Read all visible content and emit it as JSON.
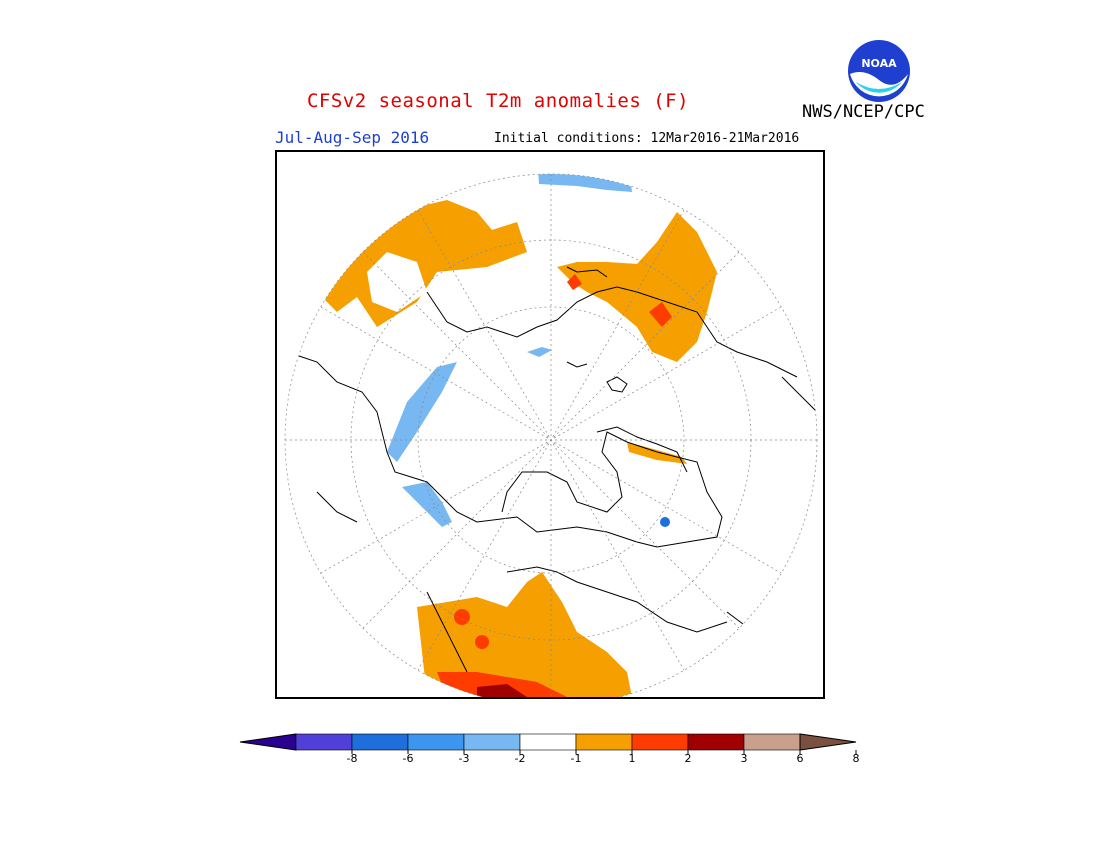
{
  "header": {
    "title": "CFSv2 seasonal T2m anomalies (F)",
    "agency": "NWS/NCEP/CPC",
    "logo_text": "NOAA",
    "season": "Jul-Aug-Sep 2016",
    "initial_conditions": "Initial conditions: 12Mar2016-21Mar2016"
  },
  "map": {
    "projection": "north-polar-stereographic",
    "variable": "T2m anomaly",
    "units": "F",
    "regions": [
      {
        "name": "central-eurasia",
        "anomaly_class": "1 to 2",
        "color": "#f5a000"
      },
      {
        "name": "eastern-siberia",
        "anomaly_class": "1 to 2",
        "color": "#f5a000"
      },
      {
        "name": "eastern-siberia-spots",
        "anomaly_class": "2 to 3",
        "color": "#ff3c00"
      },
      {
        "name": "western-us",
        "anomaly_class": "1 to 2",
        "color": "#f5a000"
      },
      {
        "name": "southwest-us",
        "anomaly_class": "2 to 3",
        "color": "#ff3c00"
      },
      {
        "name": "southwest-us-core",
        "anomaly_class": "3 to 6",
        "color": "#a00000"
      },
      {
        "name": "north-africa",
        "anomaly_class": "-1 to -2",
        "color": "#77b8f2"
      },
      {
        "name": "norwegian-coast",
        "anomaly_class": "-1 to -2",
        "color": "#77b8f2"
      },
      {
        "name": "gulf-of-alaska",
        "anomaly_class": "-1 to -2",
        "color": "#77b8f2"
      },
      {
        "name": "greenland-spot",
        "anomaly_class": "-3 to -6",
        "color": "#1e6fdc"
      }
    ]
  },
  "colorbar": {
    "ticks": [
      "-8",
      "-6",
      "-3",
      "-2",
      "-1",
      "1",
      "2",
      "3",
      "6",
      "8"
    ],
    "colors": [
      "#2a0090",
      "#5040d8",
      "#1e6fdc",
      "#3c96f0",
      "#77b8f2",
      "#ffffff",
      "#f5a000",
      "#ff3c00",
      "#a00000",
      "#c8a08c",
      "#7a5040"
    ]
  }
}
